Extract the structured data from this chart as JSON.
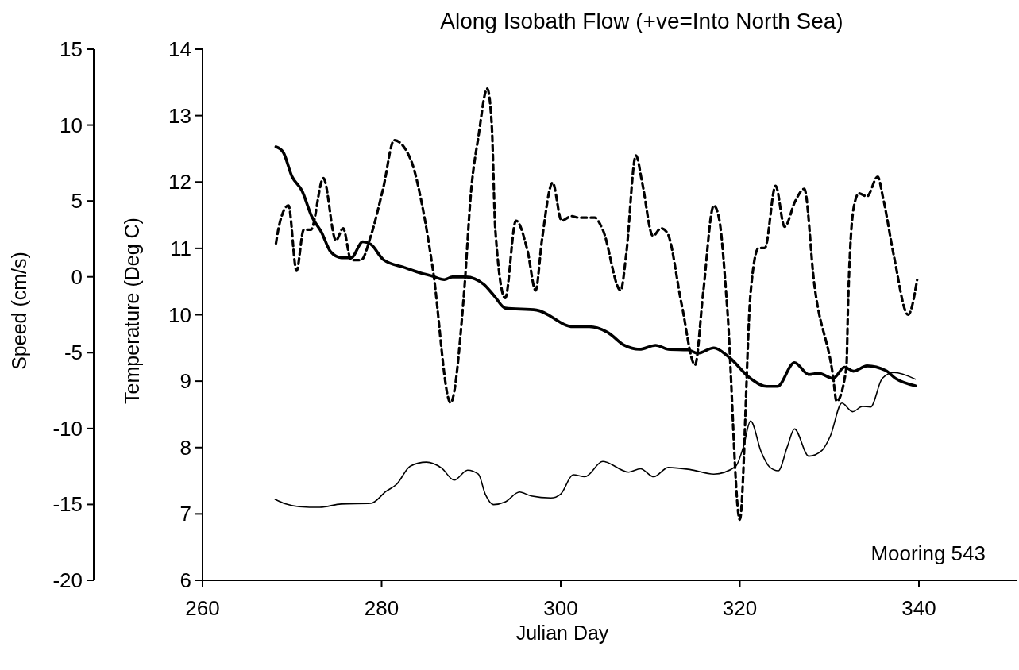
{
  "chart_data": {
    "type": "line",
    "title": "Along Isobath Flow (+ve=Into North Sea)",
    "xlabel": "Julian Day",
    "ylabel": "Temperature (Deg C)",
    "y2label": "Speed (cm/s)",
    "annotations": [
      "Mooring 543"
    ],
    "xlim": [
      260,
      351
    ],
    "xticks": [
      260,
      280,
      300,
      320,
      340
    ],
    "ylim": [
      6,
      14
    ],
    "yticks": [
      6,
      7,
      8,
      9,
      10,
      11,
      12,
      13,
      14
    ],
    "y2lim": [
      -20,
      15
    ],
    "y2ticks": [
      -20,
      -15,
      -10,
      -5,
      0,
      5,
      10,
      15
    ],
    "grid": false,
    "marker": "none",
    "series": [
      {
        "color": "#000000",
        "line_style": "dashed",
        "axis": "y2",
        "x": [
          268.2,
          268.6,
          269.6,
          270.5,
          271.3,
          272.1,
          273.5,
          274.9,
          275.7,
          276.6,
          277.7,
          278.8,
          280.2,
          281.4,
          283.2,
          284.6,
          285.7,
          287.7,
          289.2,
          290.0,
          290.8,
          291.8,
          292.3,
          292.7,
          293.8,
          295.0,
          296.3,
          297.2,
          297.9,
          299.1,
          300.1,
          301.2,
          302.0,
          303.8,
          304.7,
          306.7,
          307.3,
          308.4,
          309.1,
          310.3,
          311.2,
          311.9,
          313.5,
          315.0,
          315.9,
          317.1,
          317.7,
          318.6,
          320.0,
          321.2,
          322.1,
          322.8,
          324.0,
          325.0,
          326.2,
          327.2,
          328.3,
          330.4,
          330.8,
          331.9,
          332.1,
          332.7,
          333.3,
          334.2,
          335.4,
          336.0,
          337.2,
          338.8,
          339.8
        ],
        "values": [
          2.2,
          3.5,
          4.7,
          0.4,
          3.1,
          3.1,
          6.5,
          2.4,
          3.2,
          1.1,
          1.1,
          2.7,
          5.9,
          9.0,
          7.8,
          4.5,
          0.6,
          -8.3,
          -1.1,
          5.7,
          9.2,
          12.4,
          10.0,
          3.1,
          -1.4,
          3.7,
          1.7,
          -0.9,
          2.4,
          6.2,
          3.7,
          4.0,
          3.9,
          3.9,
          3.1,
          -0.9,
          1.4,
          8.0,
          6.2,
          2.7,
          3.2,
          2.9,
          -1.8,
          -5.8,
          -1.1,
          4.7,
          3.8,
          -2.1,
          -16.0,
          -1.1,
          1.9,
          1.9,
          6.0,
          3.3,
          5.0,
          5.8,
          -0.4,
          -6.5,
          -8.2,
          -6.0,
          -1.6,
          4.5,
          5.5,
          5.3,
          6.6,
          5.2,
          1.4,
          -2.5,
          -0.2
        ]
      },
      {
        "color": "#000000",
        "line_style": "solid",
        "x": [
          268.2,
          269.0,
          270.0,
          271.1,
          272.2,
          273.3,
          274.3,
          275.5,
          276.6,
          277.9,
          278.8,
          280.2,
          282.6,
          284.6,
          285.5,
          287.0,
          287.9,
          289.4,
          291.4,
          292.6,
          293.8,
          297.3,
          301.4,
          303.2,
          305.3,
          307.1,
          308.8,
          310.6,
          312.0,
          314.2,
          315.3,
          317.1,
          318.8,
          321.2,
          323.0,
          324.2,
          326.1,
          327.7,
          328.8,
          330.4,
          331.7,
          332.7,
          334.2,
          336.3,
          337.4,
          339.6
        ],
        "values": [
          12.53,
          12.45,
          12.08,
          11.87,
          11.48,
          11.24,
          10.95,
          10.86,
          10.86,
          11.1,
          11.06,
          10.83,
          10.71,
          10.62,
          10.59,
          10.53,
          10.57,
          10.57,
          10.46,
          10.28,
          10.1,
          10.07,
          9.82,
          9.82,
          9.73,
          9.54,
          9.48,
          9.54,
          9.48,
          9.47,
          9.42,
          9.5,
          9.36,
          9.04,
          8.92,
          8.92,
          9.28,
          9.1,
          9.12,
          9.04,
          9.21,
          9.15,
          9.23,
          9.16,
          9.04,
          8.93
        ]
      },
      {
        "color": "#000000",
        "line_style": "solid",
        "x": [
          268.1,
          269.3,
          270.8,
          273.1,
          275.5,
          278.8,
          280.5,
          281.7,
          283.2,
          285.0,
          286.7,
          288.1,
          289.6,
          290.8,
          291.6,
          292.5,
          293.8,
          295.4,
          296.7,
          298.9,
          300.0,
          301.4,
          302.7,
          304.7,
          307.6,
          308.9,
          310.4,
          312.0,
          314.4,
          317.1,
          319.5,
          320.4,
          321.2,
          322.4,
          323.3,
          324.3,
          325.3,
          326.1,
          327.7,
          329.2,
          330.1,
          331.4,
          332.6,
          333.7,
          334.6,
          335.9,
          337.2,
          339.6
        ],
        "values": [
          7.22,
          7.15,
          7.11,
          7.1,
          7.15,
          7.16,
          7.34,
          7.45,
          7.72,
          7.78,
          7.69,
          7.51,
          7.66,
          7.6,
          7.29,
          7.14,
          7.18,
          7.33,
          7.27,
          7.24,
          7.3,
          7.59,
          7.56,
          7.79,
          7.63,
          7.68,
          7.56,
          7.7,
          7.67,
          7.6,
          7.71,
          8.01,
          8.4,
          7.93,
          7.71,
          7.65,
          8.01,
          8.28,
          7.87,
          7.96,
          8.17,
          8.67,
          8.54,
          8.62,
          8.61,
          9.04,
          9.13,
          9.03
        ]
      }
    ]
  }
}
